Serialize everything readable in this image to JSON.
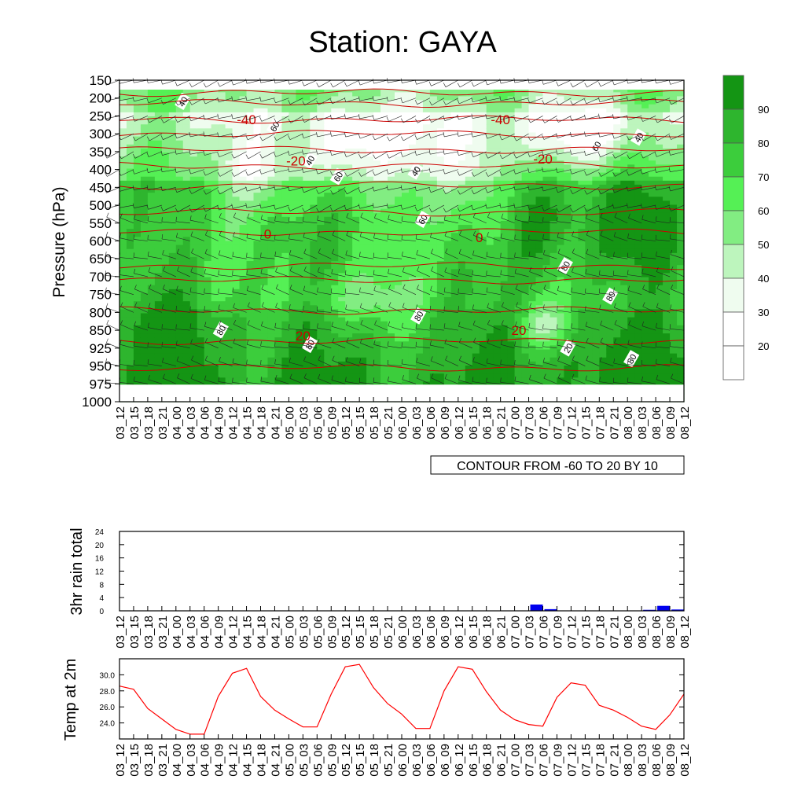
{
  "title": "Station: GAYA",
  "time_labels": [
    "03_12",
    "03_15",
    "03_18",
    "03_21",
    "04_00",
    "04_03",
    "04_06",
    "04_09",
    "04_12",
    "04_15",
    "04_18",
    "04_21",
    "05_00",
    "05_03",
    "05_06",
    "05_09",
    "05_12",
    "05_15",
    "05_18",
    "05_21",
    "06_00",
    "06_03",
    "06_06",
    "06_09",
    "06_12",
    "06_15",
    "06_18",
    "06_21",
    "07_00",
    "07_03",
    "07_06",
    "07_09",
    "07_12",
    "07_15",
    "07_18",
    "07_21",
    "08_00",
    "08_03",
    "08_06",
    "08_09",
    "08_12"
  ],
  "chart_data": [
    {
      "type": "heatmap",
      "name": "relative-humidity-cross-section",
      "ylabel": "Pressure (hPa)",
      "pressure_levels": [
        150,
        200,
        250,
        300,
        350,
        400,
        450,
        500,
        550,
        600,
        650,
        700,
        750,
        800,
        850,
        925,
        950,
        975,
        1000
      ],
      "colorbar_labels": [
        "90",
        "80",
        "70",
        "60",
        "50",
        "40",
        "30",
        "20"
      ],
      "colorbar_colors": [
        "#149514",
        "#2eb52e",
        "#3ccd3c",
        "#55f055",
        "#82ed82",
        "#bdf5bd",
        "#effcef",
        "#ffffff",
        "#ffffff"
      ],
      "temperature_contours": {
        "label": "CONTOUR FROM -60 TO 20 BY 10",
        "line_labels": [
          "-40",
          "-40",
          "-20",
          "-20",
          "0",
          "0",
          "20",
          "20"
        ],
        "color": "#cc0000"
      },
      "rh_contour_labels": [
        "40",
        "40",
        "40",
        "60",
        "60",
        "60",
        "80",
        "80",
        "80",
        "80",
        "80",
        "20",
        "40",
        "60",
        "80"
      ]
    },
    {
      "type": "bar",
      "name": "rain",
      "ylabel": "3hr rain total",
      "ylim": [
        0,
        24
      ],
      "yticks": [
        "0",
        "4",
        "8",
        "12",
        "16",
        "20",
        "24"
      ],
      "values": [
        0,
        0,
        0,
        0,
        0,
        0,
        0,
        0,
        0,
        0,
        0,
        0,
        0,
        0,
        0,
        0,
        0,
        0,
        0,
        0,
        0,
        0,
        0,
        0,
        0,
        0,
        0,
        0,
        0,
        1.9,
        0.5,
        0,
        0,
        0,
        0,
        0,
        0,
        0.3,
        1.5,
        0.4,
        0
      ],
      "color": "#0000ee"
    },
    {
      "type": "line",
      "name": "temperature",
      "ylabel": "Temp at 2m",
      "ylim": [
        22.0,
        32.0
      ],
      "yticks": [
        "24.0",
        "26.0",
        "28.0",
        "30.0"
      ],
      "values": [
        28.6,
        28.2,
        25.8,
        24.5,
        23.2,
        22.6,
        22.6,
        27.3,
        30.2,
        30.8,
        27.3,
        25.6,
        24.5,
        23.5,
        23.5,
        27.6,
        31.0,
        31.3,
        28.4,
        26.4,
        25.1,
        23.3,
        23.3,
        28.0,
        31.0,
        30.7,
        27.9,
        25.6,
        24.4,
        23.8,
        23.6,
        27.2,
        29.0,
        28.7,
        26.2,
        25.6,
        24.7,
        23.6,
        23.2,
        25.0,
        27.6
      ],
      "color": "#ff0000"
    }
  ]
}
